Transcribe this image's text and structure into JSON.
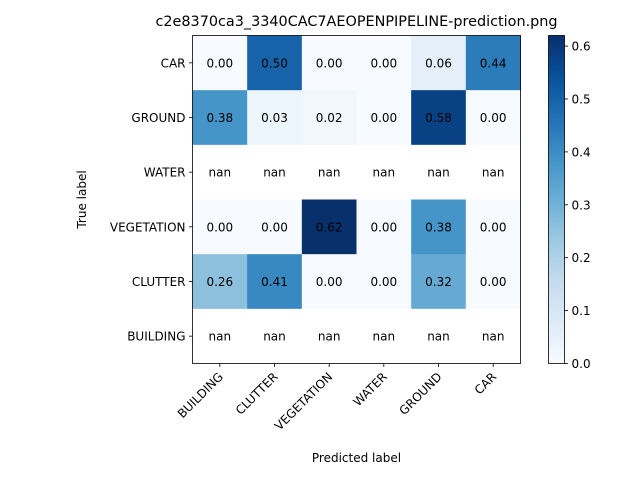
{
  "chart_data": {
    "type": "heatmap",
    "title": "c2e8370ca3_3340CAC7AEOPENPIPELINE-prediction.png",
    "xlabel": "Predicted label",
    "ylabel": "True label",
    "x_categories": [
      "BUILDING",
      "CLUTTER",
      "VEGETATION",
      "WATER",
      "GROUND",
      "CAR"
    ],
    "y_categories": [
      "CAR",
      "GROUND",
      "WATER",
      "VEGETATION",
      "CLUTTER",
      "BUILDING"
    ],
    "values": [
      [
        0.0,
        0.5,
        0.0,
        0.0,
        0.06,
        0.44
      ],
      [
        0.38,
        0.03,
        0.02,
        0.0,
        0.58,
        0.0
      ],
      [
        null,
        null,
        null,
        null,
        null,
        null
      ],
      [
        0.0,
        0.0,
        0.62,
        0.0,
        0.38,
        0.0
      ],
      [
        0.26,
        0.41,
        0.0,
        0.0,
        0.32,
        0.0
      ],
      [
        null,
        null,
        null,
        null,
        null,
        null
      ]
    ],
    "cell_labels": [
      [
        "0.00",
        "0.50",
        "0.00",
        "0.00",
        "0.06",
        "0.44"
      ],
      [
        "0.38",
        "0.03",
        "0.02",
        "0.00",
        "0.58",
        "0.00"
      ],
      [
        "nan",
        "nan",
        "nan",
        "nan",
        "nan",
        "nan"
      ],
      [
        "0.00",
        "0.00",
        "0.62",
        "0.00",
        "0.38",
        "0.00"
      ],
      [
        "0.26",
        "0.41",
        "0.00",
        "0.00",
        "0.32",
        "0.00"
      ],
      [
        "nan",
        "nan",
        "nan",
        "nan",
        "nan",
        "nan"
      ]
    ],
    "colormap": "Blues",
    "colorbar": {
      "range": [
        0,
        0.62
      ],
      "ticks": [
        0.0,
        0.1,
        0.2,
        0.3,
        0.4,
        0.5,
        0.6
      ],
      "tick_labels": [
        "0.0",
        "0.1",
        "0.2",
        "0.3",
        "0.4",
        "0.5",
        "0.6"
      ]
    },
    "grid": false
  }
}
